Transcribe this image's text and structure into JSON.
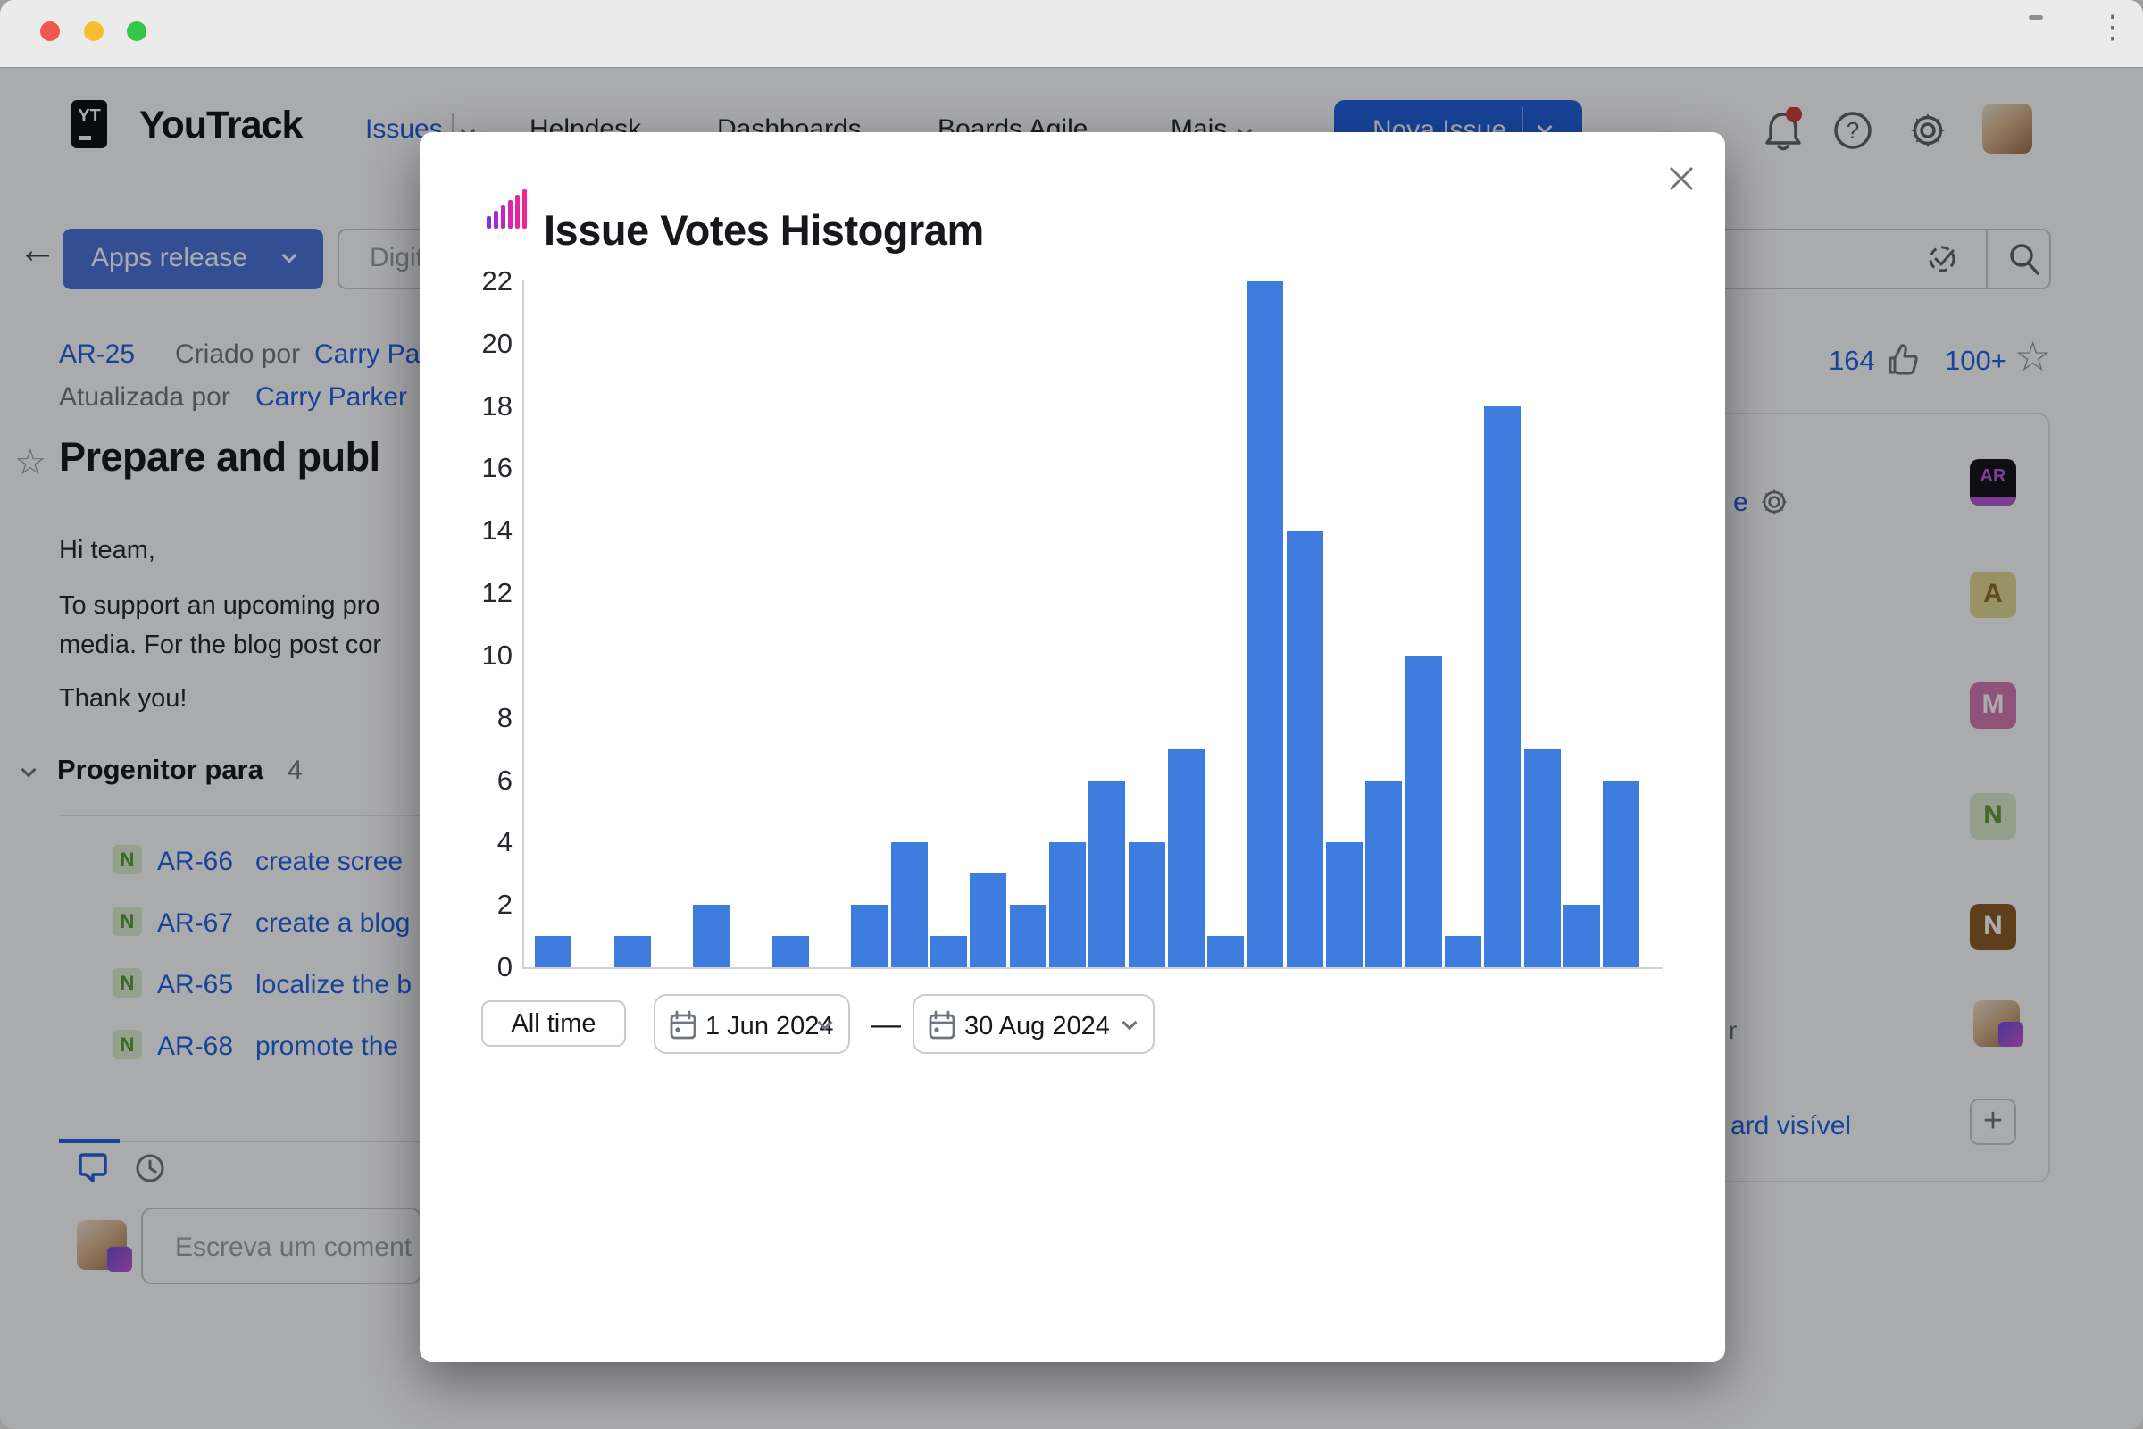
{
  "accent_color": "#2160e0",
  "chart_bar_color": "#3e7cdf",
  "icons": {
    "back_arrow": "←",
    "star_outline": "☆",
    "plus": "+",
    "ellipsis": "⋮"
  },
  "window": {},
  "header": {
    "brand": "YouTrack",
    "logo_monogram": "YT",
    "nav": [
      {
        "label": "Issues"
      },
      {
        "label": "Helpdesk"
      },
      {
        "label": "Dashboards"
      },
      {
        "label": "Boards Agile"
      },
      {
        "label": "Mais"
      }
    ],
    "new_issue_label": "Nova Issue"
  },
  "toolbar": {
    "project_button_label": "Apps release",
    "search_placeholder": "Digite"
  },
  "issue": {
    "id": "AR-25",
    "created_label": "Criado por",
    "created_by": "Carry Pa",
    "updated_label": "Atualizada por",
    "updated_by": "Carry Parker",
    "title": "Prepare and publ",
    "greeting": "Hi team,",
    "body_line1": "To support an upcoming pro",
    "body_line2": "media. For the blog post cor",
    "closing": "Thank you!",
    "likes": "164",
    "stars": "100+"
  },
  "subtasks": {
    "header": "Progenitor para",
    "count": "4",
    "items": [
      {
        "badge": "N",
        "id": "AR-66",
        "title": "create scree"
      },
      {
        "badge": "N",
        "id": "AR-67",
        "title": "create a blog"
      },
      {
        "badge": "N",
        "id": "AR-65",
        "title": "localize the b"
      },
      {
        "badge": "N",
        "id": "AR-68",
        "title": "promote the"
      }
    ]
  },
  "comment": {
    "placeholder": "Escreva um coment"
  },
  "right_panel": {
    "fragment_e": "e",
    "fragment_r": "r",
    "board_link": "ard visível",
    "avatars": [
      {
        "label": "AR"
      },
      {
        "label": "A"
      },
      {
        "label": "M"
      },
      {
        "label": "N"
      },
      {
        "label": "N"
      }
    ]
  },
  "modal": {
    "title": "Issue Votes Histogram",
    "all_time_label": "All time",
    "date_from": "1 Jun 2024",
    "range_separator": "—",
    "date_to": "30 Aug 2024",
    "chart_data": {
      "type": "bar",
      "title": "Issue Votes Histogram",
      "values": [
        1,
        0,
        1,
        0,
        2,
        0,
        1,
        0,
        2,
        4,
        1,
        3,
        2,
        4,
        6,
        4,
        7,
        1,
        22,
        14,
        4,
        6,
        10,
        1,
        18,
        7,
        2,
        6
      ],
      "x": "28 histogram bins, Jun–Aug 2024, no x tick labels shown",
      "yticks": [
        0,
        2,
        4,
        6,
        8,
        10,
        12,
        14,
        16,
        18,
        20,
        22
      ],
      "ylim": [
        0,
        22
      ],
      "xlabel": "",
      "ylabel": "",
      "grid": false,
      "legend": "none"
    }
  }
}
